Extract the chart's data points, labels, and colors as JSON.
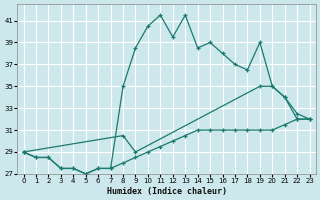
{
  "xlabel": "Humidex (Indice chaleur)",
  "bg_color": "#cde8ec",
  "grid_color": "#ffffff",
  "line_color": "#1a7a6e",
  "xlim": [
    -0.5,
    23.5
  ],
  "ylim": [
    27,
    42.5
  ],
  "xticks": [
    0,
    1,
    2,
    3,
    4,
    5,
    6,
    7,
    8,
    9,
    10,
    11,
    12,
    13,
    14,
    15,
    16,
    17,
    18,
    19,
    20,
    21,
    22,
    23
  ],
  "yticks": [
    27,
    29,
    31,
    33,
    35,
    37,
    39,
    41
  ],
  "line1_x": [
    0,
    1,
    2,
    3,
    4,
    5,
    6,
    7,
    8,
    9,
    10,
    11,
    12,
    13,
    14,
    15,
    16,
    17,
    18,
    19,
    20,
    21,
    22,
    23
  ],
  "line1_y": [
    29,
    28.5,
    28.5,
    27.5,
    27.5,
    27.0,
    27.5,
    27.5,
    28.0,
    28.5,
    29.0,
    29.5,
    30.0,
    30.5,
    31.0,
    31.0,
    31.0,
    31.0,
    31.0,
    31.0,
    31.0,
    31.5,
    32.0,
    32.0
  ],
  "line2_x": [
    0,
    1,
    2,
    3,
    4,
    5,
    6,
    7,
    8,
    9,
    10,
    11,
    12,
    13,
    14,
    15,
    16,
    17,
    18,
    19,
    20,
    21,
    22,
    23
  ],
  "line2_y": [
    29,
    28.5,
    28.5,
    27.5,
    27.5,
    27.0,
    27.5,
    27.5,
    35.0,
    38.5,
    40.5,
    41.5,
    39.5,
    41.5,
    38.5,
    39.0,
    38.0,
    37.0,
    36.5,
    39.0,
    35.0,
    34.0,
    32.0,
    32.0
  ],
  "line3_x": [
    0,
    8,
    9,
    19,
    20,
    21,
    22,
    23
  ],
  "line3_y": [
    29,
    30.5,
    29.0,
    35.0,
    35.0,
    34.0,
    32.5,
    32.0
  ]
}
